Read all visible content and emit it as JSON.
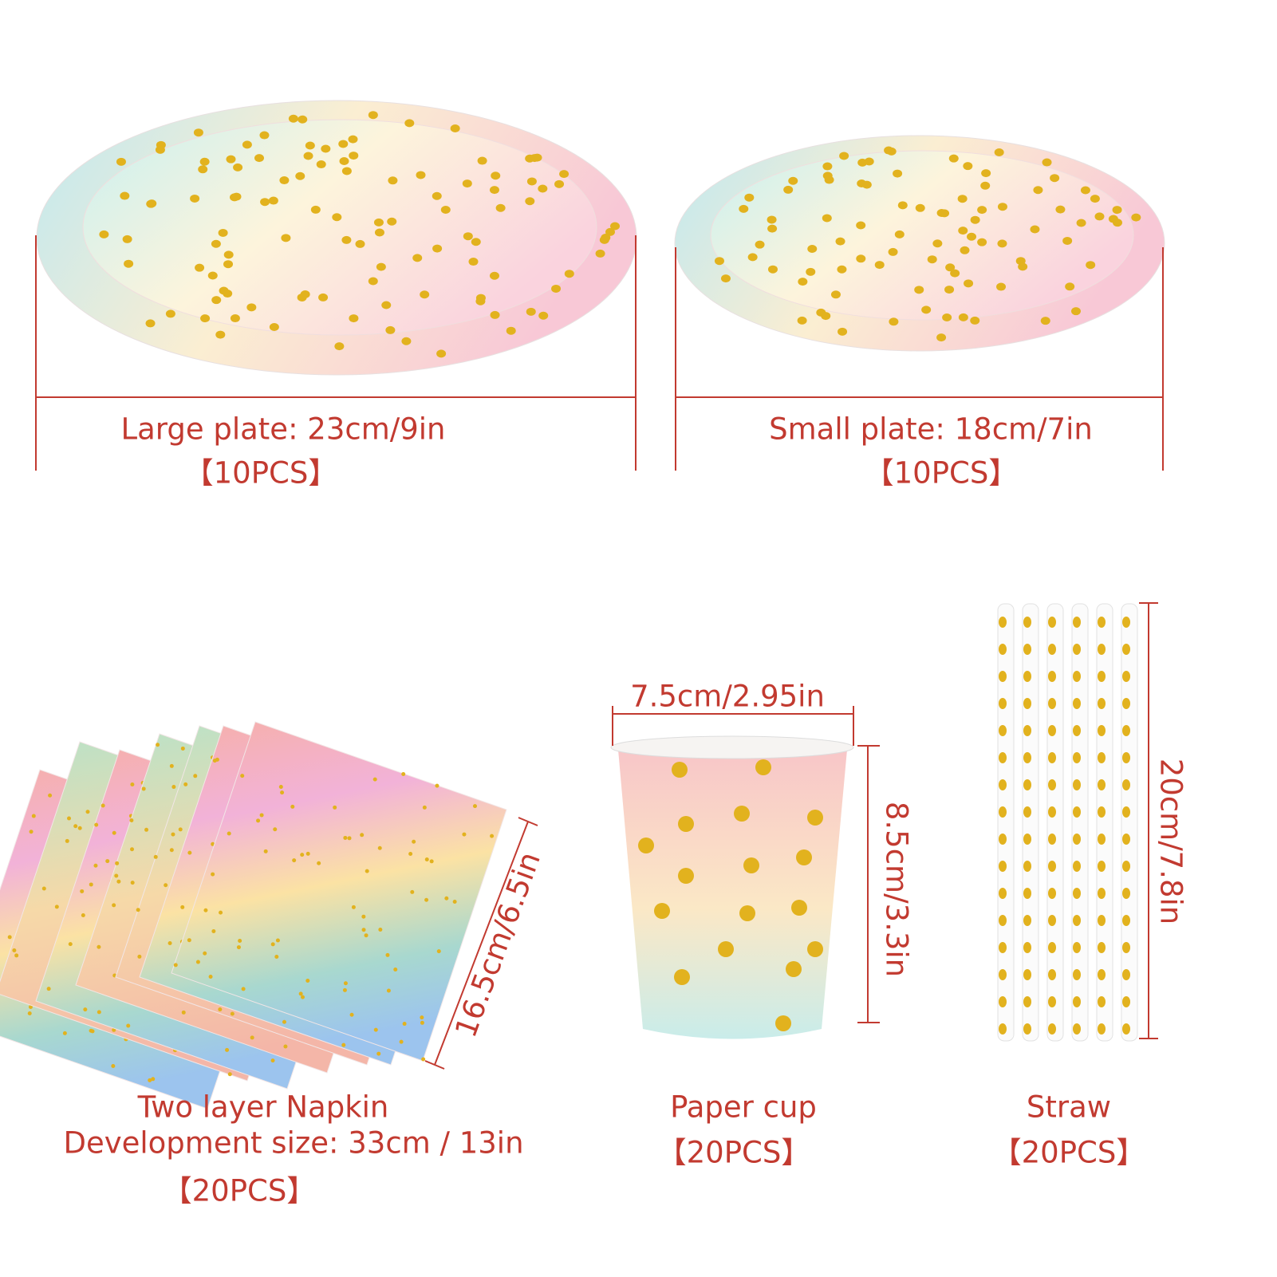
{
  "large_plate": {
    "label": "Large plate: 23cm/9in",
    "count": "【10PCS】"
  },
  "small_plate": {
    "label": "Small plate: 18cm/7in",
    "count": "【10PCS】"
  },
  "napkin": {
    "title": "Two layer Napkin",
    "size": "Development size: 33cm / 13in",
    "dimension": "16.5cm/6.5in",
    "count": "【20PCS】"
  },
  "cup": {
    "title": "Paper cup",
    "width": "7.5cm/2.95in",
    "height": "8.5cm/3.3in",
    "count": "【20PCS】"
  },
  "straw": {
    "title": "Straw",
    "length": "20cm/7.8in",
    "count": "【20PCS】"
  }
}
